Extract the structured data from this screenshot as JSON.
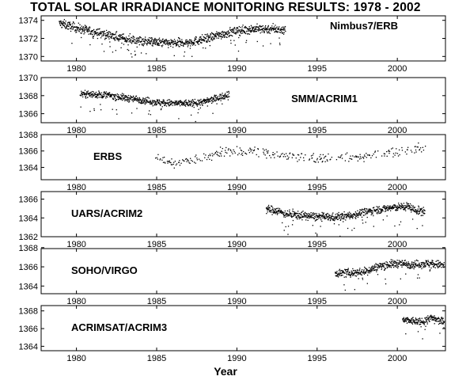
{
  "title": "TOTAL SOLAR IRRADIANCE MONITORING RESULTS: 1978 - 2002",
  "chart_data": {
    "type": "scatter",
    "xlabel": "Year",
    "xlim": [
      1977.8,
      2003.0
    ],
    "xticks": [
      1980,
      1985,
      1990,
      1995,
      2000
    ],
    "grid": false,
    "panels": [
      {
        "instrument": "Nimbus7/ERB",
        "label_position": "top-right",
        "ylim": [
          1369.5,
          1374.5
        ],
        "yticks": [
          1370,
          1372,
          1374
        ],
        "span": [
          1978.9,
          1993.0
        ],
        "series": {
          "x": [
            1979.0,
            1980.0,
            1981.0,
            1982.0,
            1983.0,
            1984.0,
            1985.0,
            1986.0,
            1987.0,
            1988.0,
            1989.0,
            1990.0,
            1991.0,
            1992.0,
            1993.0
          ],
          "y": [
            1373.7,
            1373.2,
            1372.8,
            1372.4,
            1372.0,
            1371.8,
            1371.6,
            1371.5,
            1371.6,
            1372.0,
            1372.5,
            1372.9,
            1373.1,
            1373.1,
            1373.0
          ]
        },
        "spread": 0.7,
        "dip_depth": 2.0
      },
      {
        "instrument": "SMM/ACRIM1",
        "label_position": "center-right",
        "ylim": [
          1365.0,
          1370.0
        ],
        "yticks": [
          1366,
          1368,
          1370
        ],
        "span": [
          1980.2,
          1989.5
        ],
        "series": {
          "x": [
            1980.2,
            1981.0,
            1982.0,
            1983.0,
            1984.0,
            1985.0,
            1986.0,
            1987.0,
            1988.0,
            1989.0,
            1989.5
          ],
          "y": [
            1368.3,
            1368.2,
            1368.1,
            1367.8,
            1367.6,
            1367.3,
            1367.2,
            1367.2,
            1367.4,
            1367.9,
            1368.3
          ]
        },
        "spread": 0.55,
        "dip_depth": 1.8
      },
      {
        "instrument": "ERBS",
        "label_position": "center-left",
        "ylim": [
          1362.5,
          1368.0
        ],
        "yticks": [
          1364,
          1366,
          1368
        ],
        "span": [
          1984.9,
          2001.8
        ],
        "series": {
          "x": [
            1985.0,
            1986.0,
            1987.0,
            1988.0,
            1989.0,
            1990.0,
            1991.0,
            1992.0,
            1993.0,
            1994.0,
            1995.0,
            1996.0,
            1997.0,
            1998.0,
            1999.0,
            2000.0,
            2001.0,
            2001.8
          ],
          "y": [
            1365.1,
            1364.6,
            1364.8,
            1365.3,
            1365.9,
            1366.1,
            1366.0,
            1365.8,
            1365.6,
            1365.3,
            1365.1,
            1365.0,
            1365.2,
            1365.4,
            1365.7,
            1366.0,
            1366.3,
            1366.5
          ]
        },
        "spread": 0.9,
        "dip_depth": 1.0
      },
      {
        "instrument": "UARS/ACRIM2",
        "label_position": "center-left",
        "ylim": [
          1362.0,
          1366.8
        ],
        "yticks": [
          1362,
          1364,
          1366
        ],
        "span": [
          1991.8,
          2001.7
        ],
        "series": {
          "x": [
            1991.8,
            1992.5,
            1993.0,
            1994.0,
            1995.0,
            1996.0,
            1997.0,
            1998.0,
            1999.0,
            2000.0,
            2000.7,
            2001.0,
            2001.7
          ],
          "y": [
            1365.0,
            1364.8,
            1364.5,
            1364.3,
            1364.2,
            1364.1,
            1364.3,
            1364.7,
            1365.0,
            1365.2,
            1365.3,
            1364.9,
            1364.7
          ]
        },
        "spread": 0.6,
        "dip_depth": 2.0
      },
      {
        "instrument": "SOHO/VIRGO",
        "label_position": "center-left",
        "ylim": [
          1363.2,
          1367.9
        ],
        "yticks": [
          1364,
          1366,
          1368
        ],
        "span": [
          1996.1,
          2002.9
        ],
        "series": {
          "x": [
            1996.1,
            1997.0,
            1998.0,
            1998.5,
            1999.0,
            2000.0,
            2001.0,
            2002.0,
            2002.9
          ],
          "y": [
            1365.4,
            1365.4,
            1365.6,
            1365.9,
            1366.2,
            1366.4,
            1366.3,
            1366.4,
            1366.2
          ]
        },
        "spread": 0.6,
        "dip_depth": 1.8
      },
      {
        "instrument": "ACRIMSAT/ACRIM3",
        "label_position": "center-left",
        "ylim": [
          1363.5,
          1368.6
        ],
        "yticks": [
          1364,
          1366,
          1368
        ],
        "span": [
          2000.3,
          2002.9
        ],
        "series": {
          "x": [
            2000.3,
            2001.0,
            2001.5,
            2002.0,
            2002.5,
            2002.9
          ],
          "y": [
            1367.0,
            1366.9,
            1366.8,
            1367.3,
            1367.0,
            1366.8
          ]
        },
        "spread": 0.6,
        "dip_depth": 1.6
      }
    ]
  }
}
